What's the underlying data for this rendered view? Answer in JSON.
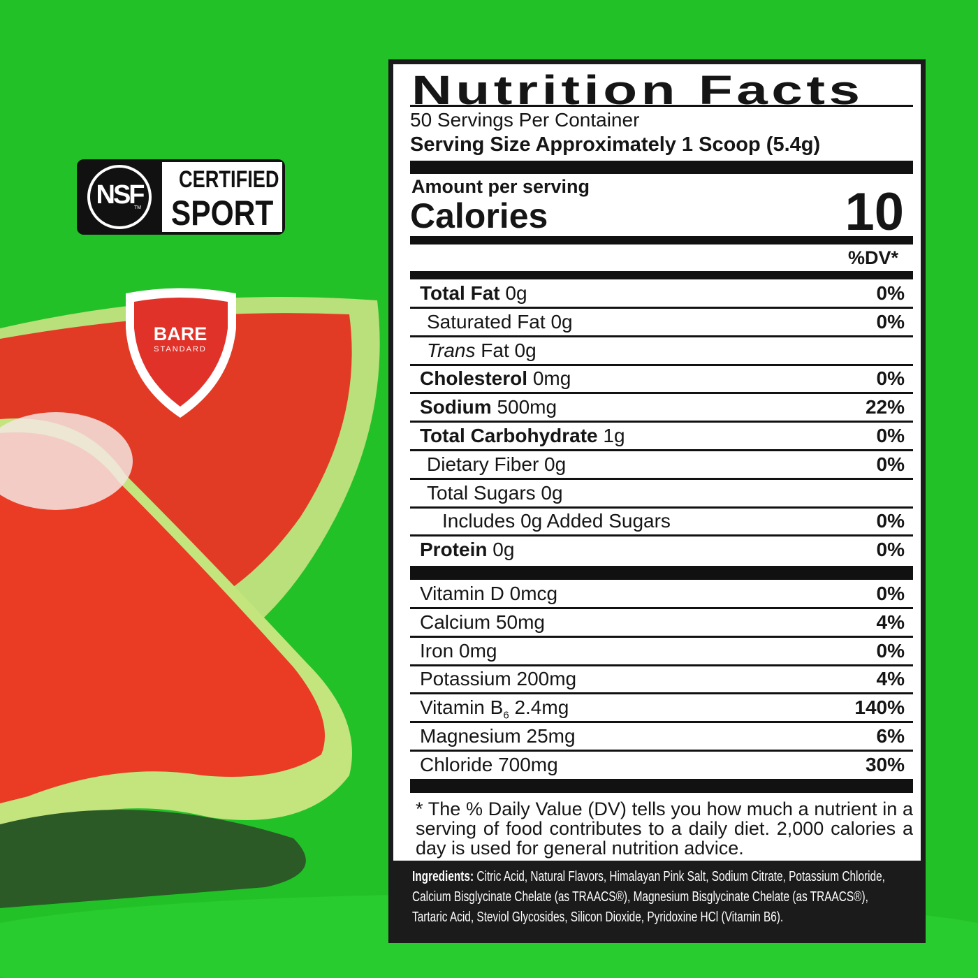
{
  "badges": {
    "nsf": {
      "mark": "NSF",
      "tm": "TM",
      "line1": "CERTIFIED",
      "line2": "SPORT"
    },
    "bare": {
      "line1": "BARE",
      "line2": "STANDARD"
    }
  },
  "label": {
    "title": "Nutrition Facts",
    "servings": "50 Servings Per Container",
    "serving_size": "Serving Size Approximately 1 Scoop (5.4g)",
    "amount_per_serving": "Amount per serving",
    "calories_label": "Calories",
    "calories_value": "10",
    "dv_header": "%DV*",
    "nutrients": [
      {
        "name": "Total Fat",
        "amount": "0g",
        "dv": "0%",
        "bold": true,
        "indent": 0
      },
      {
        "name": "Saturated Fat",
        "amount": "0g",
        "dv": "0%",
        "bold": false,
        "indent": 1
      },
      {
        "name_italic": "Trans",
        "name": "Fat",
        "amount": "0g",
        "bold": false,
        "indent": 1
      },
      {
        "name": "Cholesterol",
        "amount": "0mg",
        "dv": "0%",
        "bold": true,
        "indent": 0
      },
      {
        "name": "Sodium",
        "amount": "500mg",
        "dv": "22%",
        "bold": true,
        "indent": 0
      },
      {
        "name": "Total Carbohydrate",
        "amount": "1g",
        "dv": "0%",
        "bold": true,
        "indent": 0
      },
      {
        "name": "Dietary Fiber",
        "amount": "0g",
        "dv": "0%",
        "bold": false,
        "indent": 1
      },
      {
        "name": "Total Sugars",
        "amount": "0g",
        "bold": false,
        "indent": 1
      },
      {
        "name": "Includes",
        "amount": "0g Added Sugars",
        "dv": "0%",
        "bold": false,
        "indent": 2
      },
      {
        "name": "Protein",
        "amount": "0g",
        "dv": "0%",
        "bold": true,
        "indent": 0
      }
    ],
    "vitamins": [
      {
        "name": "Vitamin D",
        "amount": "0mcg",
        "dv": "0%"
      },
      {
        "name": "Calcium",
        "amount": "50mg",
        "dv": "4%"
      },
      {
        "name": "Iron",
        "amount": "0mg",
        "dv": "0%"
      },
      {
        "name": "Potassium",
        "amount": "200mg",
        "dv": "4%"
      },
      {
        "name": "Vitamin B",
        "sub": "6",
        "amount": "2.4mg",
        "dv": "140%"
      },
      {
        "name": "Magnesium",
        "amount": "25mg",
        "dv": "6%"
      },
      {
        "name": "Chloride",
        "amount": "700mg",
        "dv": "30%"
      }
    ],
    "footnote": "* The % Daily Value (DV) tells you how much a nutrient in a serving of food contributes to a daily diet. 2,000 calories a day is used for general nutrition advice.",
    "ingredients_label": "Ingredients:",
    "ingredients": "Citric Acid, Natural Flavors, Himalayan Pink Salt, Sodium Citrate, Potassium Chloride, Calcium Bisglycinate Chelate (as TRAACS®), Magnesium Bisglycinate Chelate (as TRAACS®), Tartaric Acid, Steviol Glycosides, Silicon Dioxide, Pyridoxine HCl (Vitamin B6)."
  }
}
